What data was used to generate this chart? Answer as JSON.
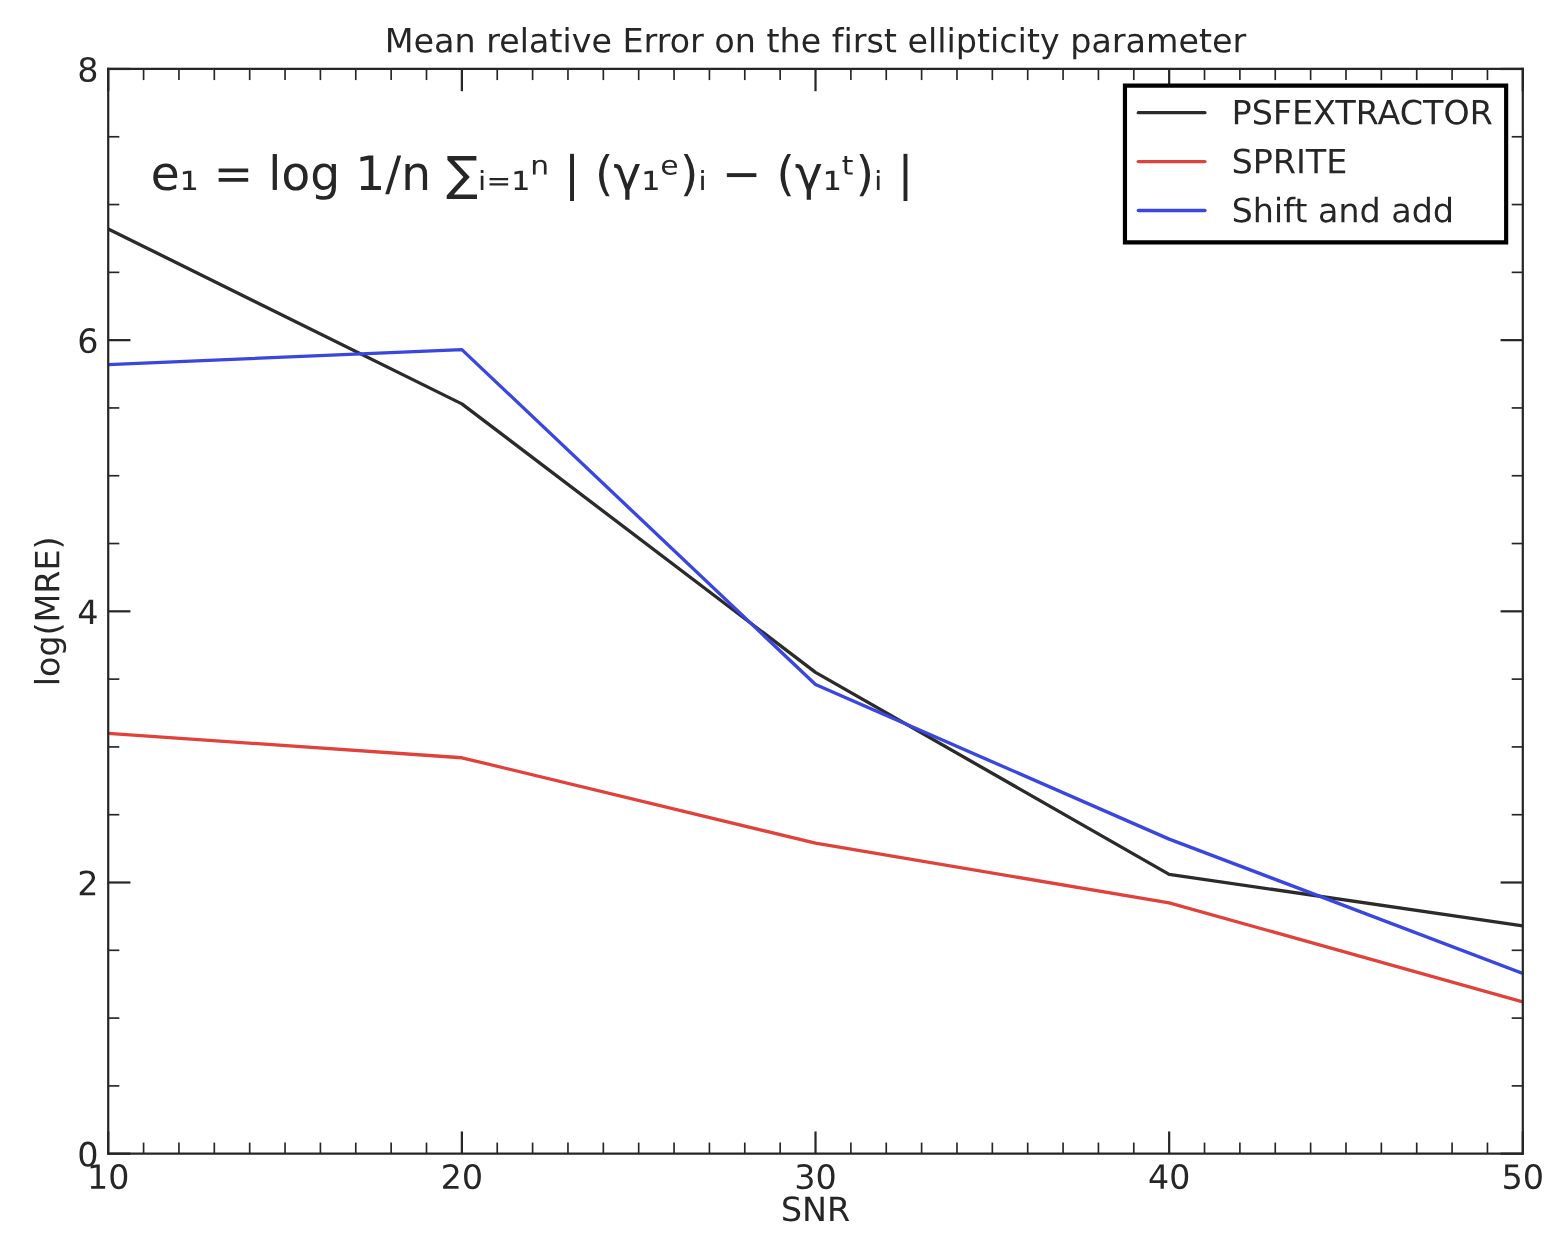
{
  "chart_data": {
    "type": "line",
    "title": "Mean relative Error on the first ellipticity parameter",
    "xlabel": "SNR",
    "ylabel": "log(MRE)",
    "x": [
      10,
      20,
      30,
      40,
      50
    ],
    "series": [
      {
        "name": "PSFEXTRACTOR",
        "color": "#2b2b2b",
        "values": [
          6.82,
          5.53,
          3.55,
          2.06,
          1.68
        ]
      },
      {
        "name": "SPRITE",
        "color": "#e0413a",
        "values": [
          3.1,
          2.92,
          2.29,
          1.85,
          1.12
        ]
      },
      {
        "name": "Shift and add",
        "color": "#3a46e0",
        "values": [
          5.82,
          5.93,
          3.46,
          2.32,
          1.33
        ]
      }
    ],
    "xlim": [
      10,
      50
    ],
    "xticks": [
      10,
      20,
      30,
      40,
      50
    ],
    "ylim": [
      0,
      8
    ],
    "yticks": [
      0,
      2,
      4,
      6,
      8
    ],
    "annotations": [
      "e₁ = log 1/n ∑ᵢ₌₁ⁿ | (γ₁ᵉ)ᵢ − (γ₁ᵗ)ᵢ |"
    ],
    "legend": "top right",
    "grid": false,
    "marker": "none",
    "line_style": "solid"
  }
}
